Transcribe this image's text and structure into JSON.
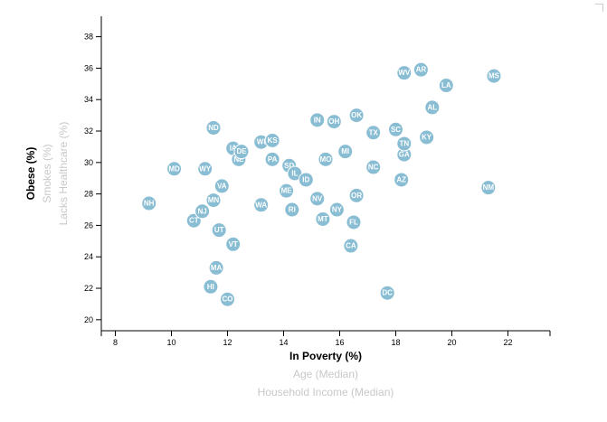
{
  "chart_data": {
    "type": "scatter",
    "xlim": [
      7.5,
      23.5
    ],
    "ylim": [
      19.3,
      39.3
    ],
    "x_ticks": [
      8,
      10,
      12,
      14,
      16,
      18,
      20,
      22
    ],
    "y_ticks": [
      20,
      22,
      24,
      26,
      28,
      30,
      32,
      34,
      36,
      38
    ],
    "x_axis_labels": [
      {
        "text": "In Poverty (%)",
        "active": true
      },
      {
        "text": "Age (Median)",
        "active": false
      },
      {
        "text": "Household Income (Median)",
        "active": false
      }
    ],
    "y_axis_labels": [
      {
        "text": "Obese (%)",
        "active": true
      },
      {
        "text": "Smokes (%)",
        "active": false
      },
      {
        "text": "Lacks Healthcare (%)",
        "active": false
      }
    ],
    "grid": false,
    "colors": {
      "marker": "#89bdd3",
      "marker_text": "#ffffff",
      "inactive_label": "#c8c8c8"
    },
    "points": [
      {
        "state": "NH",
        "x": 9.2,
        "y": 27.4
      },
      {
        "state": "MD",
        "x": 10.1,
        "y": 29.6
      },
      {
        "state": "CT",
        "x": 10.8,
        "y": 26.3
      },
      {
        "state": "NJ",
        "x": 11.1,
        "y": 26.9
      },
      {
        "state": "WY",
        "x": 11.2,
        "y": 29.6
      },
      {
        "state": "MN",
        "x": 11.5,
        "y": 27.6
      },
      {
        "state": "ND",
        "x": 11.5,
        "y": 32.2
      },
      {
        "state": "UT",
        "x": 11.7,
        "y": 25.7
      },
      {
        "state": "VA",
        "x": 11.8,
        "y": 28.5
      },
      {
        "state": "HI",
        "x": 11.4,
        "y": 22.1
      },
      {
        "state": "MA",
        "x": 11.6,
        "y": 23.3
      },
      {
        "state": "CO",
        "x": 12.0,
        "y": 21.3
      },
      {
        "state": "VT",
        "x": 12.2,
        "y": 24.8
      },
      {
        "state": "IA",
        "x": 12.2,
        "y": 30.9
      },
      {
        "state": "NE",
        "x": 12.4,
        "y": 30.2
      },
      {
        "state": "DE",
        "x": 12.5,
        "y": 30.7
      },
      {
        "state": "WA",
        "x": 13.2,
        "y": 27.3
      },
      {
        "state": "WI",
        "x": 13.2,
        "y": 31.3
      },
      {
        "state": "KS",
        "x": 13.6,
        "y": 31.4
      },
      {
        "state": "PA",
        "x": 13.6,
        "y": 30.2
      },
      {
        "state": "ME",
        "x": 14.1,
        "y": 28.2
      },
      {
        "state": "SD",
        "x": 14.2,
        "y": 29.8
      },
      {
        "state": "RI",
        "x": 14.3,
        "y": 27.0
      },
      {
        "state": "IL",
        "x": 14.4,
        "y": 29.3
      },
      {
        "state": "ID",
        "x": 14.8,
        "y": 28.9
      },
      {
        "state": "IN",
        "x": 15.2,
        "y": 32.7
      },
      {
        "state": "NV",
        "x": 15.2,
        "y": 27.7
      },
      {
        "state": "MT",
        "x": 15.4,
        "y": 26.4
      },
      {
        "state": "MO",
        "x": 15.5,
        "y": 30.2
      },
      {
        "state": "OH",
        "x": 15.8,
        "y": 32.6
      },
      {
        "state": "NY",
        "x": 15.9,
        "y": 27.0
      },
      {
        "state": "MI",
        "x": 16.2,
        "y": 30.7
      },
      {
        "state": "CA",
        "x": 16.4,
        "y": 24.7
      },
      {
        "state": "FL",
        "x": 16.5,
        "y": 26.2
      },
      {
        "state": "OR",
        "x": 16.6,
        "y": 27.9
      },
      {
        "state": "OK",
        "x": 16.6,
        "y": 33.0
      },
      {
        "state": "NC",
        "x": 17.2,
        "y": 29.7
      },
      {
        "state": "TX",
        "x": 17.2,
        "y": 31.9
      },
      {
        "state": "DC",
        "x": 17.7,
        "y": 21.7
      },
      {
        "state": "SC",
        "x": 18.0,
        "y": 32.1
      },
      {
        "state": "AZ",
        "x": 18.2,
        "y": 28.9
      },
      {
        "state": "GA",
        "x": 18.3,
        "y": 30.5
      },
      {
        "state": "TN",
        "x": 18.3,
        "y": 31.2
      },
      {
        "state": "WV",
        "x": 18.3,
        "y": 35.7
      },
      {
        "state": "AR",
        "x": 18.9,
        "y": 35.9
      },
      {
        "state": "KY",
        "x": 19.1,
        "y": 31.6
      },
      {
        "state": "AL",
        "x": 19.3,
        "y": 33.5
      },
      {
        "state": "LA",
        "x": 19.8,
        "y": 34.9
      },
      {
        "state": "NM",
        "x": 21.3,
        "y": 28.4
      },
      {
        "state": "MS",
        "x": 21.5,
        "y": 35.5
      }
    ]
  }
}
